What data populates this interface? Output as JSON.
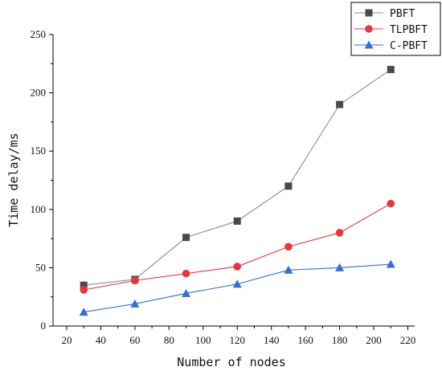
{
  "chart_data": {
    "type": "line",
    "xlabel": "Number of nodes",
    "ylabel": "Time delay/ms",
    "xlim": [
      12,
      224
    ],
    "ylim": [
      0,
      250
    ],
    "xticks": [
      20,
      40,
      60,
      80,
      100,
      120,
      140,
      160,
      180,
      200,
      220
    ],
    "yticks": [
      0,
      50,
      100,
      150,
      200,
      250
    ],
    "x": [
      30,
      60,
      90,
      120,
      150,
      180,
      210
    ],
    "legend_position": "top-right",
    "grid": false,
    "series": [
      {
        "name": "PBFT",
        "marker": "square",
        "color": "#4a4a4a",
        "line_color": "#8c8c8c",
        "values": [
          35,
          40,
          76,
          90,
          120,
          190,
          220
        ]
      },
      {
        "name": "TLPBFT",
        "marker": "circle",
        "color": "#e8373a",
        "line_color": "#e8373a",
        "values": [
          31,
          39,
          45,
          51,
          68,
          80,
          105
        ]
      },
      {
        "name": "C-PBFT",
        "marker": "triangle",
        "color": "#2f6fd6",
        "line_color": "#2f6fd6",
        "values": [
          12,
          19,
          28,
          36,
          48,
          50,
          53
        ]
      }
    ]
  }
}
